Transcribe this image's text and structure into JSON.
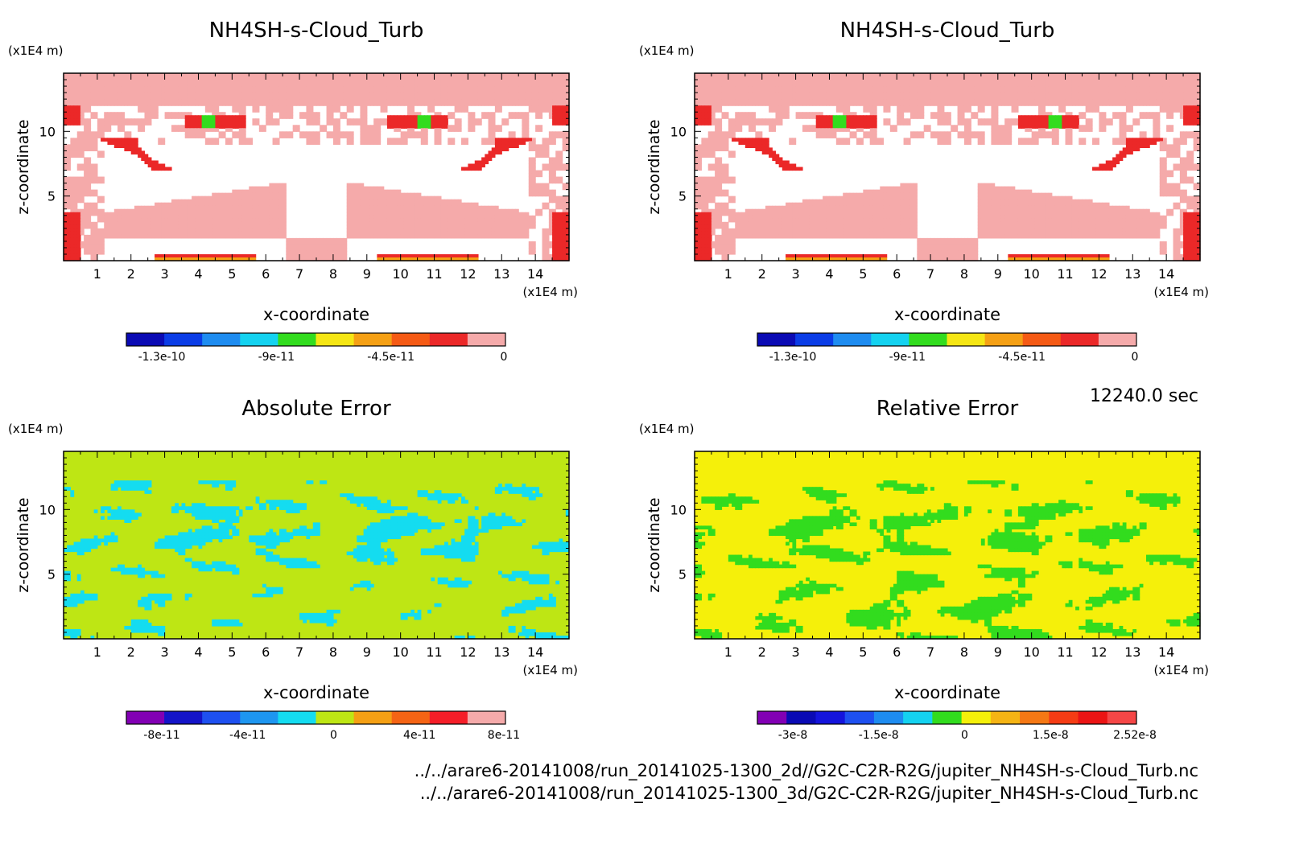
{
  "time_label": "12240.0 sec",
  "footer": {
    "line1": "../../arare6-20141008/run_20141025-1300_2d//G2C-C2R-R2G/jupiter_NH4SH-s-Cloud_Turb.nc",
    "line2": "../../arare6-20141008/run_20141025-1300_3d/G2C-C2R-R2G/jupiter_NH4SH-s-Cloud_Turb.nc"
  },
  "chart_data": [
    {
      "type": "heatmap",
      "title": "NH4SH-s-Cloud_Turb",
      "xlabel": "x-coordinate",
      "ylabel": "z-coordinate",
      "x_unit": "(x1E4 m)",
      "y_unit": "(x1E4 m)",
      "xlim": [
        0,
        15
      ],
      "ylim": [
        0,
        14.5
      ],
      "x_ticks": [
        "1",
        "2",
        "3",
        "4",
        "5",
        "6",
        "7",
        "8",
        "9",
        "10",
        "11",
        "12",
        "13",
        "14"
      ],
      "y_ticks": [
        "5",
        "10"
      ],
      "field": "cloud",
      "colorbar": {
        "colors": [
          "#0a0ab4",
          "#0a3ce6",
          "#1e8cf0",
          "#14d2f0",
          "#32dc1e",
          "#f5e614",
          "#f5a014",
          "#f55a14",
          "#eb2828",
          "#f5aaaa"
        ],
        "labels": [
          "-1.3e-10",
          "-9e-11",
          "-4.5e-11",
          "0"
        ]
      }
    },
    {
      "type": "heatmap",
      "title": "NH4SH-s-Cloud_Turb",
      "xlabel": "x-coordinate",
      "ylabel": "z-coordinate",
      "x_unit": "(x1E4 m)",
      "y_unit": "(x1E4 m)",
      "xlim": [
        0,
        15
      ],
      "ylim": [
        0,
        14.5
      ],
      "x_ticks": [
        "1",
        "2",
        "3",
        "4",
        "5",
        "6",
        "7",
        "8",
        "9",
        "10",
        "11",
        "12",
        "13",
        "14"
      ],
      "y_ticks": [
        "5",
        "10"
      ],
      "field": "cloud",
      "colorbar": {
        "colors": [
          "#0a0ab4",
          "#0a3ce6",
          "#1e8cf0",
          "#14d2f0",
          "#32dc1e",
          "#f5e614",
          "#f5a014",
          "#f55a14",
          "#eb2828",
          "#f5aaaa"
        ],
        "labels": [
          "-1.3e-10",
          "-9e-11",
          "-4.5e-11",
          "0"
        ]
      }
    },
    {
      "type": "heatmap",
      "title": "Absolute Error",
      "xlabel": "x-coordinate",
      "ylabel": "z-coordinate",
      "x_unit": "(x1E4 m)",
      "y_unit": "(x1E4 m)",
      "xlim": [
        0,
        15
      ],
      "ylim": [
        0,
        14.5
      ],
      "x_ticks": [
        "1",
        "2",
        "3",
        "4",
        "5",
        "6",
        "7",
        "8",
        "9",
        "10",
        "11",
        "12",
        "13",
        "14"
      ],
      "y_ticks": [
        "5",
        "10"
      ],
      "field": "abs",
      "colorbar": {
        "colors": [
          "#8200b4",
          "#1414c8",
          "#1e50f0",
          "#1e96f0",
          "#14dcf0",
          "#bee614",
          "#f5a014",
          "#f56414",
          "#f51e28",
          "#f5aaaa"
        ],
        "labels": [
          "-8e-11",
          "-4e-11",
          "0",
          "4e-11",
          "8e-11"
        ]
      }
    },
    {
      "type": "heatmap",
      "title": "Relative Error",
      "xlabel": "x-coordinate",
      "ylabel": "z-coordinate",
      "x_unit": "(x1E4 m)",
      "y_unit": "(x1E4 m)",
      "xlim": [
        0,
        15
      ],
      "ylim": [
        0,
        14.5
      ],
      "x_ticks": [
        "1",
        "2",
        "3",
        "4",
        "5",
        "6",
        "7",
        "8",
        "9",
        "10",
        "11",
        "12",
        "13",
        "14"
      ],
      "y_ticks": [
        "5",
        "10"
      ],
      "field": "rel",
      "colorbar": {
        "colors": [
          "#8200b4",
          "#0a0ab4",
          "#1414dc",
          "#1e50f0",
          "#1e8cf0",
          "#14d2f0",
          "#32dc1e",
          "#f5f00a",
          "#f5b414",
          "#f57814",
          "#f53c14",
          "#eb1414",
          "#f54646"
        ],
        "labels": [
          "-3e-8",
          "-1.5e-8",
          "0",
          "1.5e-8",
          "2.52e-8"
        ]
      }
    }
  ]
}
